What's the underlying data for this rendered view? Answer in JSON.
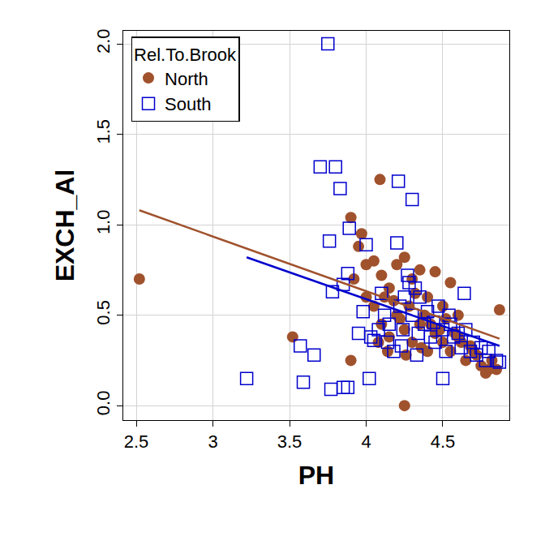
{
  "chart_data": {
    "type": "scatter",
    "x_label": "PH",
    "y_label": "EXCH_Al",
    "legend_title": "Rel.To.Brook",
    "legend": "top left",
    "grid": true,
    "xlim": [
      2.415,
      4.934
    ],
    "ylim": [
      -0.08,
      2.072
    ],
    "xticks": [
      2.5,
      3.0,
      3.5,
      4.0,
      4.5
    ],
    "yticks": [
      {
        "value": 0,
        "label": "0.0"
      },
      {
        "value": 0.5,
        "label": "0.5"
      },
      {
        "value": 1,
        "label": "1.0"
      },
      {
        "value": 1.5,
        "label": "1.5"
      },
      {
        "value": 2,
        "label": "2.0"
      }
    ],
    "series": [
      {
        "name": "North",
        "color": "#a0522d",
        "marker": "circle",
        "x": [
          2.52,
          3.52,
          3.9,
          3.9,
          4.09,
          4.25,
          3.97,
          3.95,
          4.0,
          4.05,
          4.1,
          4.15,
          4.2,
          4.25,
          4.3,
          4.35,
          4.4,
          4.45,
          4.5,
          4.55,
          4.6,
          4.05,
          4.1,
          4.15,
          4.2,
          4.25,
          4.3,
          4.35,
          4.4,
          4.45,
          4.5,
          4.55,
          4.6,
          4.65,
          4.7,
          4.75,
          4.78,
          4.8,
          4.82,
          4.85,
          4.87,
          4.12,
          4.18,
          4.22,
          4.28,
          4.32,
          4.38,
          4.42,
          4.48,
          4.52,
          4.58,
          4.62,
          4.68,
          4.72,
          3.92,
          4.0,
          4.08,
          4.14,
          4.26,
          4.36
        ],
        "values": [
          0.7,
          0.38,
          1.04,
          0.25,
          1.25,
          0.0,
          0.95,
          0.88,
          0.78,
          0.8,
          0.72,
          0.65,
          0.78,
          0.82,
          0.7,
          0.75,
          0.6,
          0.74,
          0.55,
          0.68,
          0.5,
          0.55,
          0.45,
          0.38,
          0.5,
          0.42,
          0.35,
          0.45,
          0.3,
          0.4,
          0.35,
          0.3,
          0.38,
          0.25,
          0.3,
          0.22,
          0.18,
          0.2,
          0.25,
          0.2,
          0.53,
          0.6,
          0.58,
          0.48,
          0.55,
          0.62,
          0.5,
          0.45,
          0.42,
          0.48,
          0.4,
          0.35,
          0.33,
          0.28,
          0.7,
          0.6,
          0.35,
          0.3,
          0.28,
          0.32
        ],
        "fit": {
          "x": [
            2.52,
            4.87
          ],
          "values": [
            1.08,
            0.37
          ]
        }
      },
      {
        "name": "South",
        "color": "#0000cd",
        "marker": "square-open",
        "x": [
          3.22,
          3.57,
          3.59,
          3.66,
          3.7,
          3.75,
          3.76,
          3.8,
          3.83,
          3.85,
          3.78,
          3.77,
          3.85,
          3.88,
          3.89,
          3.88,
          3.95,
          4.0,
          4.02,
          3.98,
          4.03,
          4.08,
          4.1,
          4.12,
          4.15,
          4.18,
          4.2,
          4.21,
          4.3,
          4.22,
          4.25,
          4.28,
          4.3,
          4.32,
          4.35,
          4.38,
          4.4,
          4.42,
          4.45,
          4.47,
          4.5,
          4.5,
          4.52,
          4.55,
          4.57,
          4.6,
          4.62,
          4.65,
          4.68,
          4.7,
          4.72,
          4.75,
          4.78,
          4.8,
          4.85,
          4.87,
          4.05,
          4.14,
          4.24,
          4.34,
          4.44,
          4.54,
          4.64,
          4.27,
          4.23,
          4.33
        ],
        "values": [
          0.15,
          0.33,
          0.13,
          0.28,
          1.32,
          2.0,
          0.91,
          1.32,
          1.2,
          0.67,
          0.63,
          0.09,
          0.1,
          0.1,
          0.98,
          0.73,
          0.4,
          0.89,
          0.15,
          0.52,
          0.38,
          0.42,
          0.62,
          0.5,
          0.45,
          0.3,
          0.9,
          1.24,
          1.14,
          0.55,
          0.6,
          0.68,
          0.5,
          0.65,
          0.6,
          0.45,
          0.52,
          0.38,
          0.35,
          0.55,
          0.42,
          0.15,
          0.3,
          0.45,
          0.38,
          0.4,
          0.32,
          0.42,
          0.3,
          0.35,
          0.28,
          0.32,
          0.25,
          0.3,
          0.25,
          0.24,
          0.36,
          0.35,
          0.42,
          0.4,
          0.46,
          0.5,
          0.62,
          0.72,
          0.33,
          0.28
        ],
        "fit": {
          "x": [
            3.22,
            4.87
          ],
          "values": [
            0.82,
            0.33
          ]
        }
      }
    ]
  }
}
